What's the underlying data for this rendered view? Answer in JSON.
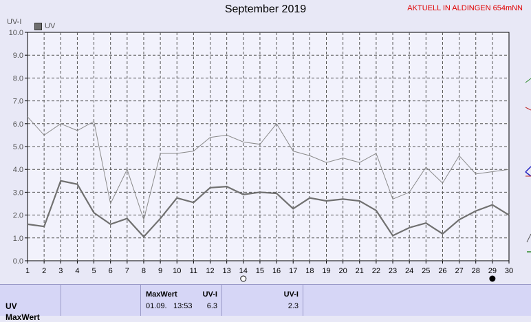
{
  "header": {
    "title": "September 2019",
    "station": "AKTUELL IN ALDINGEN 654mNN"
  },
  "chart_data": {
    "type": "line",
    "ylabel": "UV-I",
    "ylim": [
      0,
      10
    ],
    "yticks": [
      "0.0",
      "1.0",
      "2.0",
      "3.0",
      "4.0",
      "5.0",
      "6.0",
      "7.0",
      "8.0",
      "9.0",
      "10.0"
    ],
    "x": [
      1,
      2,
      3,
      4,
      5,
      6,
      7,
      8,
      9,
      10,
      11,
      12,
      13,
      14,
      15,
      16,
      17,
      18,
      19,
      20,
      21,
      22,
      23,
      24,
      25,
      26,
      27,
      28,
      29,
      30
    ],
    "legend": [
      {
        "name": "UV",
        "color": "#6e6e6e"
      }
    ],
    "series": [
      {
        "name": "UV",
        "role": "max",
        "color": "#8a8a8a",
        "values": [
          6.3,
          5.5,
          6.0,
          5.7,
          6.1,
          2.5,
          4.0,
          1.8,
          4.7,
          4.7,
          4.8,
          5.4,
          5.5,
          5.2,
          5.1,
          6.0,
          4.8,
          4.6,
          4.3,
          4.5,
          4.3,
          4.7,
          2.7,
          3.0,
          4.1,
          3.4,
          4.6,
          3.8,
          3.9,
          4.0
        ]
      },
      {
        "name": "UV",
        "role": "mean",
        "color": "#707070",
        "values": [
          1.6,
          1.5,
          3.5,
          3.35,
          2.1,
          1.6,
          1.85,
          1.05,
          1.85,
          2.75,
          2.55,
          3.2,
          3.25,
          2.9,
          3.0,
          2.95,
          2.28,
          2.75,
          2.62,
          2.7,
          2.62,
          2.2,
          1.1,
          1.45,
          1.65,
          1.18,
          1.8,
          2.18,
          2.45,
          2.0
        ]
      }
    ],
    "moon_markers": [
      {
        "day": 14,
        "phase": "full-moon"
      },
      {
        "day": 29,
        "phase": "new-moon"
      }
    ],
    "grid": true
  },
  "summary": {
    "row_label": "UV",
    "row_label2": "MaxWert",
    "maxwert_header": "MaxWert",
    "unit_header": "UV-I",
    "max_date": "01.09.",
    "max_time": "13:53",
    "max_value": "6.3",
    "avg_unit_header": "UV-I",
    "avg_value": "2.3"
  }
}
